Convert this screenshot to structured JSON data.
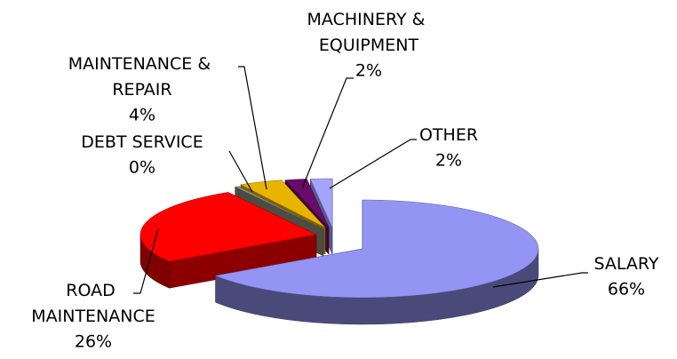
{
  "chart_data": {
    "type": "pie3d",
    "categories": [
      "SALARY",
      "ROAD MAINTENANCE",
      "DEBT SERVICE",
      "MAINTENANCE & REPAIR",
      "MACHINERY & EQUIPMENT",
      "OTHER"
    ],
    "values": [
      66,
      26,
      0.4,
      4,
      2,
      2
    ],
    "value_labels": [
      "66%",
      "26%",
      "0%",
      "4%",
      "2%",
      "2%"
    ],
    "colors": [
      "#9494f4",
      "#ff0000",
      "#8a8a78",
      "#e8b400",
      "#6a0a6a",
      "#a4a4ff"
    ]
  }
}
